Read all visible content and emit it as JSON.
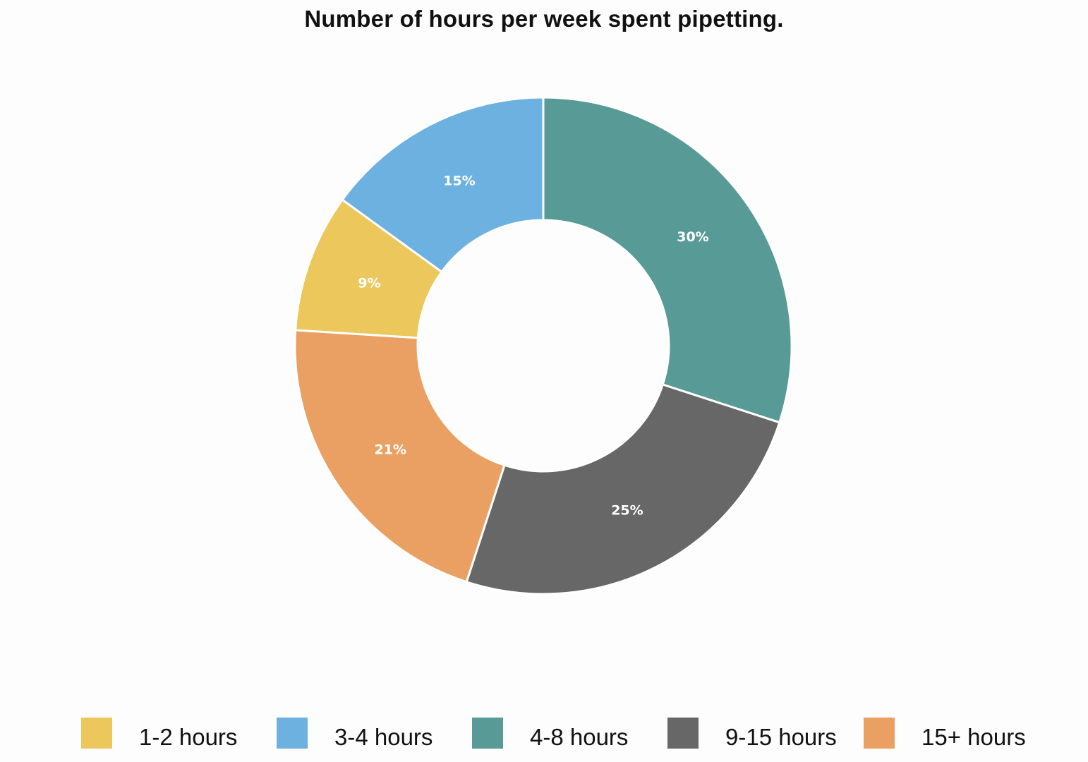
{
  "chart_data": {
    "type": "pie",
    "variant": "donut",
    "title": "Number of hours per week spent pipetting.",
    "categories": [
      "1-2 hours",
      "3-4 hours",
      "4-8 hours",
      "9-15 hours",
      "15+ hours"
    ],
    "values": [
      9,
      15,
      30,
      25,
      21
    ],
    "data_labels": [
      "9%",
      "15%",
      "30%",
      "25%",
      "21%"
    ],
    "unit": "%",
    "colors": [
      "#ecc75c",
      "#6db1e0",
      "#589a96",
      "#676767",
      "#eba063"
    ],
    "start_category": "4-8 hours",
    "direction": "clockwise",
    "legend_position": "bottom"
  }
}
